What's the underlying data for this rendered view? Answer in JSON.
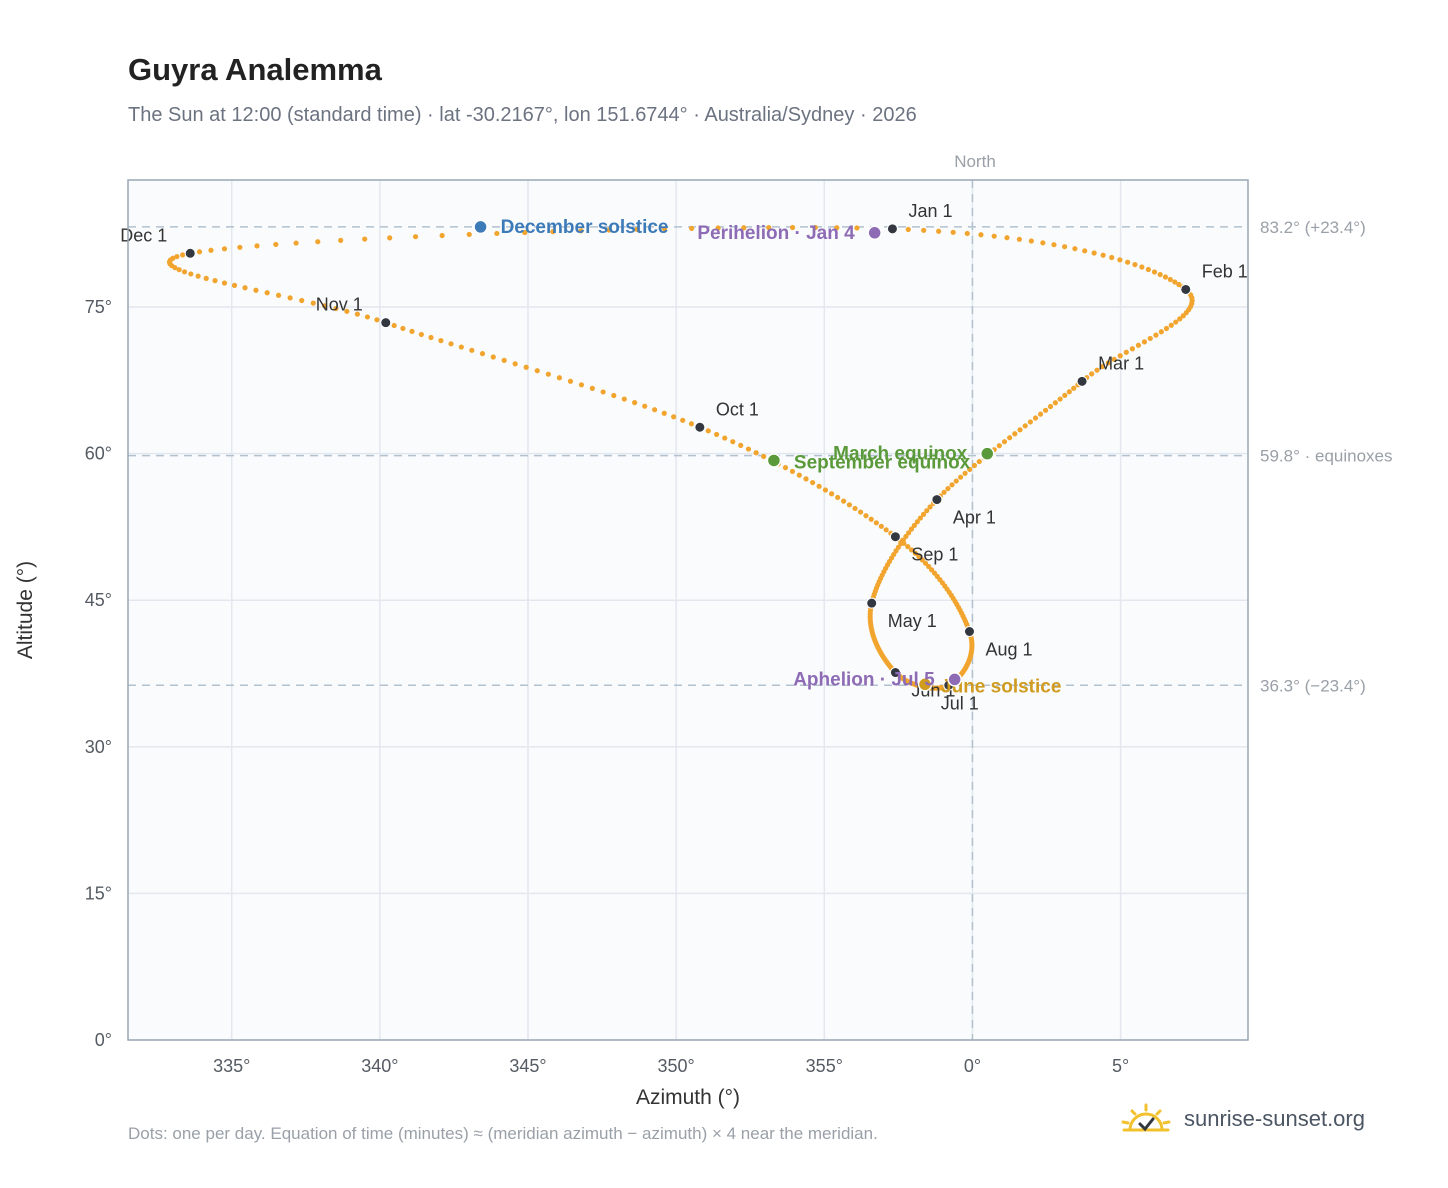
{
  "title": "Guyra Analemma",
  "subtitle": "The Sun at 12:00 (standard time) · lat -30.2167°, lon 151.6744° · Australia/Sydney · 2026",
  "footnote": "Dots: one per day. Equation of time (minutes) ≈ (meridian azimuth − azimuth) × 4 near the meridian.",
  "brand": {
    "text": "sunrise-sunset.org",
    "icon": "sun-check-icon"
  },
  "colors": {
    "curve": "#f2a52e",
    "month_dot": "#333840",
    "december_solstice": "#3d7ab8",
    "june_solstice": "#d09b1e",
    "equinox": "#5a9a3a",
    "apsis": "#8e6bb5",
    "guide": "#b3c1cf",
    "grid": "#e3e8ee",
    "plot_bg": "#f9fbfd"
  },
  "chart_data": {
    "type": "scatter",
    "xlabel": "Azimuth (°)",
    "ylabel": "Altitude (°)",
    "xlim": [
      331.5,
      9.3
    ],
    "ylim": [
      0,
      88
    ],
    "x_ticks": [
      {
        "value": 335,
        "label": "335°"
      },
      {
        "value": 340,
        "label": "340°"
      },
      {
        "value": 345,
        "label": "345°"
      },
      {
        "value": 350,
        "label": "350°"
      },
      {
        "value": 355,
        "label": "355°"
      },
      {
        "value": 0,
        "label": "0°"
      },
      {
        "value": 5,
        "label": "5°"
      }
    ],
    "y_ticks": [
      {
        "value": 0,
        "label": "0°"
      },
      {
        "value": 15,
        "label": "15°"
      },
      {
        "value": 30,
        "label": "30°"
      },
      {
        "value": 45,
        "label": "45°"
      },
      {
        "value": 60,
        "label": "60°"
      },
      {
        "value": 75,
        "label": "75°"
      }
    ],
    "grid": true,
    "north_label": "North",
    "reference_lines": [
      {
        "altitude": 83.2,
        "label": "83.2° (+23.4°)"
      },
      {
        "altitude": 59.8,
        "label": "59.8° · equinoxes"
      },
      {
        "altitude": 36.3,
        "label": "36.3° (−23.4°)"
      }
    ],
    "months": [
      {
        "label": "Jan 1",
        "az": 357.3,
        "alt": 83.0
      },
      {
        "label": "Feb 1",
        "az": 7.2,
        "alt": 76.8
      },
      {
        "label": "Mar 1",
        "az": 3.7,
        "alt": 67.4
      },
      {
        "label": "Apr 1",
        "az": 358.8,
        "alt": 55.3
      },
      {
        "label": "May 1",
        "az": 356.6,
        "alt": 44.7
      },
      {
        "label": "Jun 1",
        "az": 357.4,
        "alt": 37.6
      },
      {
        "label": "Jul 1",
        "az": 359.2,
        "alt": 36.3
      },
      {
        "label": "Aug 1",
        "az": 359.9,
        "alt": 41.8
      },
      {
        "label": "Sep 1",
        "az": 357.4,
        "alt": 51.5
      },
      {
        "label": "Oct 1",
        "az": 350.8,
        "alt": 62.7
      },
      {
        "label": "Nov 1",
        "az": 340.2,
        "alt": 73.4
      },
      {
        "label": "Dec 1",
        "az": 333.6,
        "alt": 80.5
      }
    ],
    "events": [
      {
        "label": "December solstice",
        "az": 343.4,
        "alt": 83.2,
        "color": "#3d7ab8"
      },
      {
        "label": "Perihelion · Jan 4",
        "az": 356.7,
        "alt": 82.6,
        "color": "#8e6bb5"
      },
      {
        "label": "March equinox",
        "az": 0.5,
        "alt": 60.0,
        "color": "#5a9a3a"
      },
      {
        "label": "September equinox",
        "az": 353.3,
        "alt": 59.3,
        "color": "#5a9a3a"
      },
      {
        "label": "June solstice",
        "az": 358.4,
        "alt": 36.4,
        "color": "#d09b1e"
      },
      {
        "label": "Aphelion · Jul 5",
        "az": 359.4,
        "alt": 36.9,
        "color": "#8e6bb5"
      }
    ]
  }
}
